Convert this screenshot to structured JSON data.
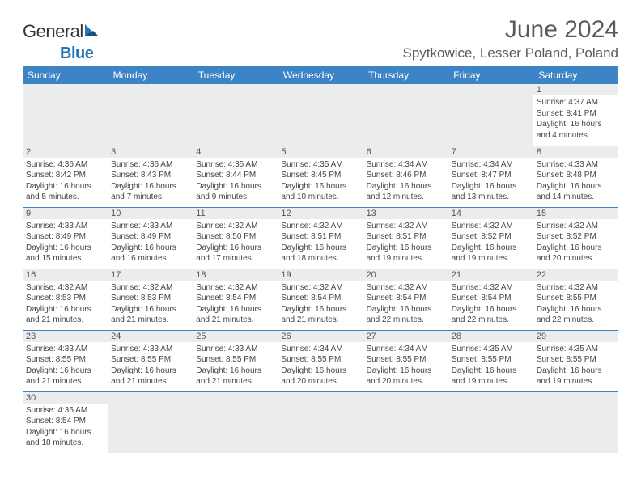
{
  "brand": {
    "name_part1": "General",
    "name_part2": "Blue",
    "sail_color": "#2277bb"
  },
  "title": {
    "month": "June 2024",
    "location": "Spytkowice, Lesser Poland, Poland"
  },
  "colors": {
    "header_bg": "#3d84c6",
    "header_text": "#ffffff",
    "daynum_bg": "#ececec",
    "cell_border": "#3d84c6",
    "text": "#444444"
  },
  "weekdays": [
    "Sunday",
    "Monday",
    "Tuesday",
    "Wednesday",
    "Thursday",
    "Friday",
    "Saturday"
  ],
  "weeks": [
    [
      null,
      null,
      null,
      null,
      null,
      null,
      {
        "n": "1",
        "sr": "4:37 AM",
        "ss": "8:41 PM",
        "dl": "16 hours and 4 minutes."
      }
    ],
    [
      {
        "n": "2",
        "sr": "4:36 AM",
        "ss": "8:42 PM",
        "dl": "16 hours and 5 minutes."
      },
      {
        "n": "3",
        "sr": "4:36 AM",
        "ss": "8:43 PM",
        "dl": "16 hours and 7 minutes."
      },
      {
        "n": "4",
        "sr": "4:35 AM",
        "ss": "8:44 PM",
        "dl": "16 hours and 9 minutes."
      },
      {
        "n": "5",
        "sr": "4:35 AM",
        "ss": "8:45 PM",
        "dl": "16 hours and 10 minutes."
      },
      {
        "n": "6",
        "sr": "4:34 AM",
        "ss": "8:46 PM",
        "dl": "16 hours and 12 minutes."
      },
      {
        "n": "7",
        "sr": "4:34 AM",
        "ss": "8:47 PM",
        "dl": "16 hours and 13 minutes."
      },
      {
        "n": "8",
        "sr": "4:33 AM",
        "ss": "8:48 PM",
        "dl": "16 hours and 14 minutes."
      }
    ],
    [
      {
        "n": "9",
        "sr": "4:33 AM",
        "ss": "8:49 PM",
        "dl": "16 hours and 15 minutes."
      },
      {
        "n": "10",
        "sr": "4:33 AM",
        "ss": "8:49 PM",
        "dl": "16 hours and 16 minutes."
      },
      {
        "n": "11",
        "sr": "4:32 AM",
        "ss": "8:50 PM",
        "dl": "16 hours and 17 minutes."
      },
      {
        "n": "12",
        "sr": "4:32 AM",
        "ss": "8:51 PM",
        "dl": "16 hours and 18 minutes."
      },
      {
        "n": "13",
        "sr": "4:32 AM",
        "ss": "8:51 PM",
        "dl": "16 hours and 19 minutes."
      },
      {
        "n": "14",
        "sr": "4:32 AM",
        "ss": "8:52 PM",
        "dl": "16 hours and 19 minutes."
      },
      {
        "n": "15",
        "sr": "4:32 AM",
        "ss": "8:52 PM",
        "dl": "16 hours and 20 minutes."
      }
    ],
    [
      {
        "n": "16",
        "sr": "4:32 AM",
        "ss": "8:53 PM",
        "dl": "16 hours and 21 minutes."
      },
      {
        "n": "17",
        "sr": "4:32 AM",
        "ss": "8:53 PM",
        "dl": "16 hours and 21 minutes."
      },
      {
        "n": "18",
        "sr": "4:32 AM",
        "ss": "8:54 PM",
        "dl": "16 hours and 21 minutes."
      },
      {
        "n": "19",
        "sr": "4:32 AM",
        "ss": "8:54 PM",
        "dl": "16 hours and 21 minutes."
      },
      {
        "n": "20",
        "sr": "4:32 AM",
        "ss": "8:54 PM",
        "dl": "16 hours and 22 minutes."
      },
      {
        "n": "21",
        "sr": "4:32 AM",
        "ss": "8:54 PM",
        "dl": "16 hours and 22 minutes."
      },
      {
        "n": "22",
        "sr": "4:32 AM",
        "ss": "8:55 PM",
        "dl": "16 hours and 22 minutes."
      }
    ],
    [
      {
        "n": "23",
        "sr": "4:33 AM",
        "ss": "8:55 PM",
        "dl": "16 hours and 21 minutes."
      },
      {
        "n": "24",
        "sr": "4:33 AM",
        "ss": "8:55 PM",
        "dl": "16 hours and 21 minutes."
      },
      {
        "n": "25",
        "sr": "4:33 AM",
        "ss": "8:55 PM",
        "dl": "16 hours and 21 minutes."
      },
      {
        "n": "26",
        "sr": "4:34 AM",
        "ss": "8:55 PM",
        "dl": "16 hours and 20 minutes."
      },
      {
        "n": "27",
        "sr": "4:34 AM",
        "ss": "8:55 PM",
        "dl": "16 hours and 20 minutes."
      },
      {
        "n": "28",
        "sr": "4:35 AM",
        "ss": "8:55 PM",
        "dl": "16 hours and 19 minutes."
      },
      {
        "n": "29",
        "sr": "4:35 AM",
        "ss": "8:55 PM",
        "dl": "16 hours and 19 minutes."
      }
    ],
    [
      {
        "n": "30",
        "sr": "4:36 AM",
        "ss": "8:54 PM",
        "dl": "16 hours and 18 minutes."
      },
      null,
      null,
      null,
      null,
      null,
      null
    ]
  ],
  "labels": {
    "sunrise": "Sunrise:",
    "sunset": "Sunset:",
    "daylight": "Daylight:"
  }
}
